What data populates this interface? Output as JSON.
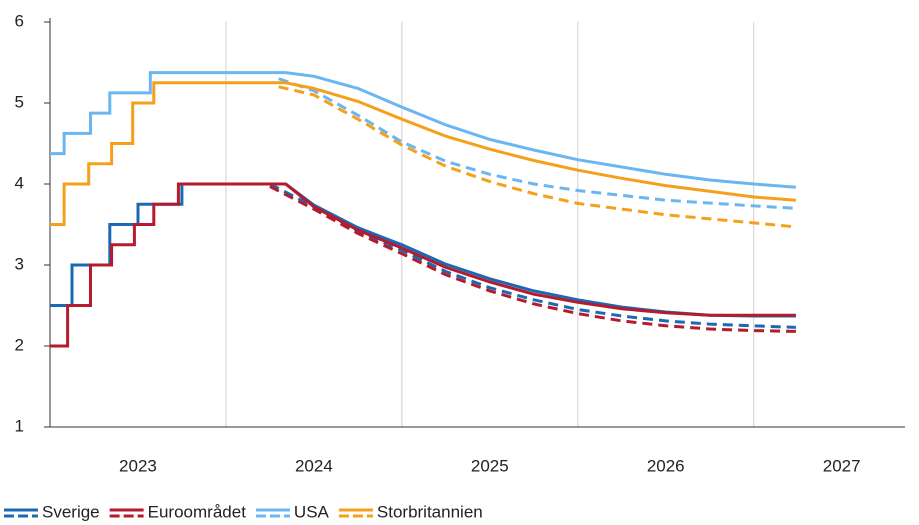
{
  "chart_data": {
    "type": "line",
    "xlim": [
      2023,
      2027.86
    ],
    "xticks": [
      2023,
      2024,
      2025,
      2026,
      2027
    ],
    "ylim": [
      1,
      6
    ],
    "yticks": [
      1,
      2,
      3,
      4,
      5,
      6
    ],
    "grid": true,
    "legend": "bottom",
    "series": [
      {
        "name": "Sverige",
        "color": "#1b69b3",
        "x": [
          2023,
          2023.125,
          2023.125,
          2023.34,
          2023.34,
          2023.5,
          2023.5,
          2023.75,
          2023.75,
          2024.34,
          2024.5,
          2024.75,
          2025,
          2025.25,
          2025.5,
          2025.75,
          2026,
          2026.25,
          2026.5,
          2026.75,
          2027,
          2027.24
        ],
        "values": [
          2.5,
          2.5,
          3,
          3,
          3.5,
          3.5,
          3.75,
          3.75,
          4,
          4,
          3.74,
          3.46,
          3.25,
          3.01,
          2.83,
          2.68,
          2.57,
          2.48,
          2.42,
          2.38,
          2.37,
          2.37
        ],
        "dashed_x": [
          2024.25,
          2024.5,
          2024.75,
          2025,
          2025.25,
          2025.5,
          2025.75,
          2026,
          2026.25,
          2026.5,
          2026.75,
          2027,
          2027.24
        ],
        "dashed_values": [
          4,
          3.72,
          3.42,
          3.18,
          2.92,
          2.72,
          2.57,
          2.45,
          2.37,
          2.31,
          2.27,
          2.25,
          2.23
        ]
      },
      {
        "name": "Euroområdet",
        "color": "#b51b2c",
        "x": [
          2023,
          2023.1,
          2023.1,
          2023.23,
          2023.23,
          2023.35,
          2023.35,
          2023.48,
          2023.48,
          2023.59,
          2023.59,
          2023.73,
          2023.73,
          2024.34,
          2024.5,
          2024.75,
          2025,
          2025.25,
          2025.5,
          2025.75,
          2026,
          2026.25,
          2026.5,
          2026.75,
          2027,
          2027.24
        ],
        "values": [
          2,
          2,
          2.5,
          2.5,
          3,
          3,
          3.25,
          3.25,
          3.5,
          3.5,
          3.75,
          3.75,
          4,
          4,
          3.72,
          3.43,
          3.21,
          2.97,
          2.79,
          2.64,
          2.54,
          2.46,
          2.41,
          2.38,
          2.38,
          2.38
        ],
        "dashed_x": [
          2024.25,
          2024.5,
          2024.75,
          2025,
          2025.25,
          2025.5,
          2025.75,
          2026,
          2026.25,
          2026.5,
          2026.75,
          2027,
          2027.24
        ],
        "dashed_values": [
          3.97,
          3.69,
          3.39,
          3.14,
          2.88,
          2.68,
          2.52,
          2.4,
          2.31,
          2.25,
          2.21,
          2.19,
          2.18
        ]
      },
      {
        "name": "USA",
        "color": "#6cb6f0",
        "x": [
          2023,
          2023.08,
          2023.08,
          2023.23,
          2023.23,
          2023.34,
          2023.34,
          2023.57,
          2023.57,
          2024.34,
          2024.5,
          2024.75,
          2025,
          2025.25,
          2025.5,
          2025.75,
          2026,
          2026.25,
          2026.5,
          2026.75,
          2027,
          2027.24
        ],
        "values": [
          4.375,
          4.375,
          4.625,
          4.625,
          4.875,
          4.875,
          5.125,
          5.125,
          5.375,
          5.375,
          5.33,
          5.18,
          4.95,
          4.73,
          4.55,
          4.42,
          4.3,
          4.21,
          4.12,
          4.05,
          4,
          3.96
        ],
        "dashed_x": [
          2024.3,
          2024.5,
          2024.75,
          2025,
          2025.25,
          2025.5,
          2025.75,
          2026,
          2026.5,
          2027,
          2027.24
        ],
        "dashed_values": [
          5.3,
          5.15,
          4.85,
          4.52,
          4.28,
          4.12,
          4,
          3.92,
          3.8,
          3.73,
          3.7
        ]
      },
      {
        "name": "Storbritannien",
        "color": "#f5a01a",
        "x": [
          2023,
          2023.08,
          2023.08,
          2023.22,
          2023.22,
          2023.35,
          2023.35,
          2023.47,
          2023.47,
          2023.59,
          2023.59,
          2024.34,
          2024.5,
          2024.75,
          2025,
          2025.25,
          2025.5,
          2025.75,
          2026,
          2026.25,
          2026.5,
          2026.75,
          2027,
          2027.24
        ],
        "values": [
          3.5,
          3.5,
          4,
          4,
          4.25,
          4.25,
          4.5,
          4.5,
          5,
          5,
          5.25,
          5.25,
          5.18,
          5.02,
          4.8,
          4.59,
          4.43,
          4.29,
          4.17,
          4.07,
          3.98,
          3.91,
          3.84,
          3.8
        ],
        "dashed_x": [
          2024.3,
          2024.5,
          2024.75,
          2025,
          2025.25,
          2025.5,
          2025.75,
          2026,
          2026.5,
          2027,
          2027.24
        ],
        "dashed_values": [
          5.2,
          5.1,
          4.8,
          4.48,
          4.22,
          4.03,
          3.88,
          3.76,
          3.62,
          3.52,
          3.47
        ]
      }
    ]
  }
}
